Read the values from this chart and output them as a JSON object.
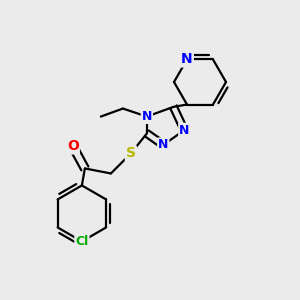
{
  "bg_color": "#ebebeb",
  "bond_color": "#000000",
  "bond_width": 1.6,
  "atom_colors": {
    "N": "#0000ff",
    "O": "#ff0000",
    "S": "#b8b800",
    "Cl": "#00aa00",
    "C": "#000000"
  }
}
